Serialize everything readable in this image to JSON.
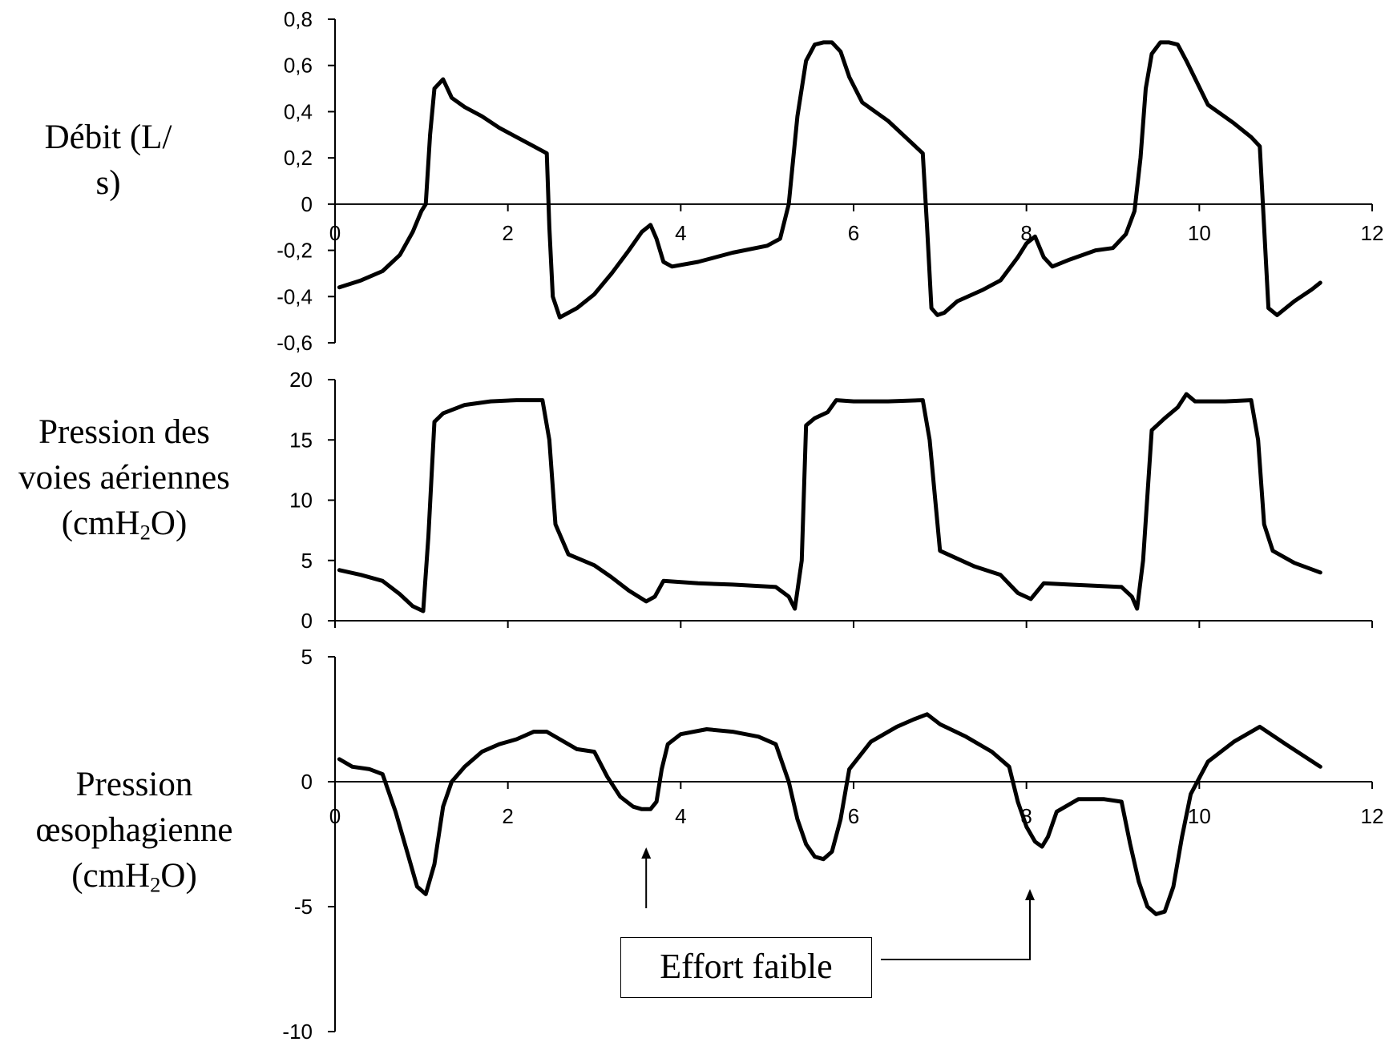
{
  "chart_data": [
    {
      "type": "line",
      "ylabel": "Débit (L/\ns)",
      "xlim": [
        0,
        12
      ],
      "ylim": [
        -0.6,
        0.8
      ],
      "x_ticks": [
        0,
        2,
        4,
        6,
        8,
        10,
        12
      ],
      "y_ticks": [
        -0.6,
        -0.4,
        -0.2,
        0,
        0.2,
        0.4,
        0.6,
        0.8
      ],
      "y_tick_labels": [
        "-0,6",
        "-0,4",
        "-0,2",
        "0",
        "0,2",
        "0,4",
        "0,6",
        "0,8"
      ],
      "x_tick_labels": [
        "0",
        "2",
        "4",
        "6",
        "8",
        "10",
        "12"
      ],
      "x_axis_at": 0,
      "series": [
        {
          "x": [
            0.05,
            0.3,
            0.55,
            0.75,
            0.9,
            1.0,
            1.05,
            1.1,
            1.15,
            1.25,
            1.35,
            1.5,
            1.7,
            1.9,
            2.1,
            2.3,
            2.45,
            2.48,
            2.52,
            2.6,
            2.8,
            3.0,
            3.2,
            3.4,
            3.55,
            3.65,
            3.72,
            3.8,
            3.9,
            4.2,
            4.6,
            5.0,
            5.15,
            5.25,
            5.35,
            5.45,
            5.55,
            5.65,
            5.75,
            5.85,
            5.95,
            6.1,
            6.4,
            6.6,
            6.8,
            6.85,
            6.9,
            6.97,
            7.05,
            7.2,
            7.5,
            7.7,
            7.9,
            8.0,
            8.1,
            8.2,
            8.3,
            8.5,
            8.8,
            9.0,
            9.15,
            9.25,
            9.32,
            9.38,
            9.45,
            9.55,
            9.65,
            9.75,
            9.85,
            10.1,
            10.4,
            10.6,
            10.7,
            10.75,
            10.8,
            10.9,
            11.1,
            11.3,
            11.4
          ],
          "y": [
            -0.36,
            -0.33,
            -0.29,
            -0.22,
            -0.12,
            -0.03,
            0.0,
            0.3,
            0.5,
            0.54,
            0.46,
            0.42,
            0.38,
            0.33,
            0.29,
            0.25,
            0.22,
            -0.1,
            -0.4,
            -0.49,
            -0.45,
            -0.39,
            -0.3,
            -0.2,
            -0.12,
            -0.09,
            -0.15,
            -0.25,
            -0.27,
            -0.25,
            -0.21,
            -0.18,
            -0.15,
            0.0,
            0.38,
            0.62,
            0.69,
            0.7,
            0.7,
            0.66,
            0.55,
            0.44,
            0.36,
            0.29,
            0.22,
            -0.1,
            -0.45,
            -0.48,
            -0.47,
            -0.42,
            -0.37,
            -0.33,
            -0.23,
            -0.17,
            -0.14,
            -0.23,
            -0.27,
            -0.24,
            -0.2,
            -0.19,
            -0.13,
            -0.03,
            0.2,
            0.5,
            0.65,
            0.7,
            0.7,
            0.69,
            0.62,
            0.43,
            0.35,
            0.29,
            0.25,
            -0.1,
            -0.45,
            -0.48,
            -0.42,
            -0.37,
            -0.34
          ]
        }
      ]
    },
    {
      "type": "line",
      "ylabel": "Pression des\nvoies aériennes\n(cmH",
      "ylabel_sub": "2",
      "ylabel_end": "O)",
      "xlim": [
        0,
        12
      ],
      "ylim": [
        0,
        20
      ],
      "x_ticks": [
        0,
        2,
        4,
        6,
        8,
        10,
        12
      ],
      "y_ticks": [
        0,
        5,
        10,
        15,
        20
      ],
      "y_tick_labels": [
        "0",
        "5",
        "10",
        "15",
        "20"
      ],
      "x_axis_at": 0,
      "series": [
        {
          "x": [
            0.05,
            0.3,
            0.55,
            0.75,
            0.9,
            1.02,
            1.08,
            1.15,
            1.25,
            1.5,
            1.8,
            2.1,
            2.4,
            2.48,
            2.55,
            2.7,
            3.0,
            3.2,
            3.4,
            3.6,
            3.7,
            3.8,
            4.2,
            4.6,
            5.1,
            5.25,
            5.32,
            5.4,
            5.45,
            5.55,
            5.7,
            5.8,
            6.0,
            6.4,
            6.8,
            6.88,
            7.0,
            7.4,
            7.7,
            7.9,
            8.05,
            8.2,
            8.5,
            8.8,
            9.1,
            9.22,
            9.28,
            9.35,
            9.45,
            9.6,
            9.75,
            9.85,
            9.95,
            10.3,
            10.6,
            10.68,
            10.75,
            10.85,
            11.1,
            11.4
          ],
          "y": [
            4.2,
            3.8,
            3.3,
            2.2,
            1.2,
            0.8,
            7.0,
            16.5,
            17.2,
            17.9,
            18.2,
            18.3,
            18.3,
            15.0,
            8.0,
            5.5,
            4.6,
            3.6,
            2.5,
            1.6,
            2.0,
            3.3,
            3.1,
            3.0,
            2.8,
            2.0,
            1.0,
            5.0,
            16.2,
            16.8,
            17.3,
            18.3,
            18.2,
            18.2,
            18.3,
            15.0,
            5.8,
            4.5,
            3.8,
            2.3,
            1.8,
            3.1,
            3.0,
            2.9,
            2.8,
            2.0,
            1.0,
            5.0,
            15.8,
            16.8,
            17.7,
            18.8,
            18.2,
            18.2,
            18.3,
            15.0,
            8.0,
            5.8,
            4.8,
            4.0
          ]
        }
      ]
    },
    {
      "type": "line",
      "ylabel": "Pression\nœsophagienne\n(cmH",
      "ylabel_sub": "2",
      "ylabel_end": "O)",
      "xlim": [
        0,
        12
      ],
      "ylim": [
        -10,
        5
      ],
      "x_ticks": [
        0,
        2,
        4,
        6,
        8,
        10,
        12
      ],
      "x_tick_labels": [
        "0",
        "2",
        "4",
        "6",
        "8",
        "10",
        "12"
      ],
      "y_ticks": [
        -10,
        -5,
        0,
        5
      ],
      "y_tick_labels": [
        "-10",
        "-5",
        "0",
        "5"
      ],
      "x_axis_at": 0,
      "series": [
        {
          "x": [
            0.05,
            0.2,
            0.4,
            0.55,
            0.7,
            0.85,
            0.95,
            1.05,
            1.15,
            1.25,
            1.35,
            1.5,
            1.7,
            1.9,
            2.1,
            2.3,
            2.45,
            2.6,
            2.8,
            3.0,
            3.15,
            3.3,
            3.45,
            3.55,
            3.65,
            3.72,
            3.78,
            3.85,
            4.0,
            4.3,
            4.6,
            4.9,
            5.1,
            5.25,
            5.35,
            5.45,
            5.55,
            5.65,
            5.75,
            5.85,
            5.95,
            6.2,
            6.5,
            6.7,
            6.85,
            7.0,
            7.3,
            7.6,
            7.8,
            7.9,
            8.0,
            8.1,
            8.18,
            8.25,
            8.35,
            8.6,
            8.9,
            9.1,
            9.2,
            9.3,
            9.4,
            9.5,
            9.6,
            9.7,
            9.8,
            9.9,
            10.1,
            10.4,
            10.7,
            11.0,
            11.4
          ],
          "y": [
            0.9,
            0.6,
            0.5,
            0.3,
            -1.2,
            -3.0,
            -4.2,
            -4.5,
            -3.3,
            -1.0,
            0.0,
            0.6,
            1.2,
            1.5,
            1.7,
            2.0,
            2.0,
            1.7,
            1.3,
            1.2,
            0.2,
            -0.6,
            -1.0,
            -1.1,
            -1.1,
            -0.8,
            0.5,
            1.5,
            1.9,
            2.1,
            2.0,
            1.8,
            1.5,
            0.0,
            -1.5,
            -2.5,
            -3.0,
            -3.1,
            -2.8,
            -1.5,
            0.5,
            1.6,
            2.2,
            2.5,
            2.7,
            2.3,
            1.8,
            1.2,
            0.6,
            -0.8,
            -1.8,
            -2.4,
            -2.6,
            -2.2,
            -1.2,
            -0.7,
            -0.7,
            -0.8,
            -2.5,
            -4.0,
            -5.0,
            -5.3,
            -5.2,
            -4.2,
            -2.2,
            -0.5,
            0.8,
            1.6,
            2.2,
            1.5,
            0.6
          ]
        }
      ]
    }
  ],
  "annotation": {
    "text": "Effort faible",
    "arrow_targets_x": [
      3.6,
      8.05
    ]
  }
}
